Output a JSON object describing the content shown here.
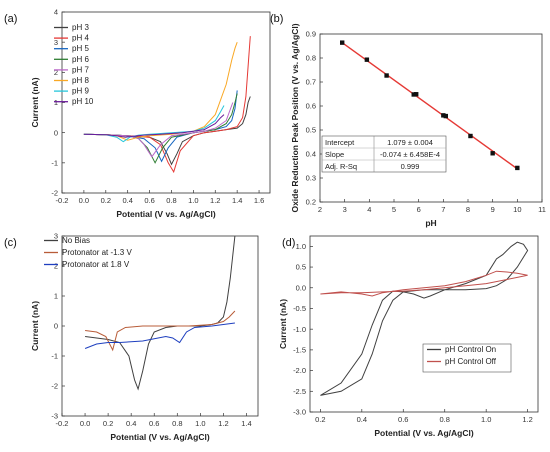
{
  "chart_data": [
    {
      "panel": "(a)",
      "type": "line",
      "xlabel": "Potential (V vs. Ag/AgCl)",
      "ylabel": "Current (nA)",
      "xlim": [
        -0.2,
        1.7
      ],
      "ylim": [
        -2,
        4
      ],
      "xticks": [
        "-0.2",
        "0.0",
        "0.2",
        "0.4",
        "0.6",
        "0.8",
        "1.0",
        "1.2",
        "1.4",
        "1.6"
      ],
      "yticks": [
        "-2",
        "-1",
        "0",
        "1",
        "2",
        "3",
        "4"
      ],
      "legend_position": "top-left",
      "series": [
        {
          "name": "pH 3",
          "color": "#404040",
          "x": [
            0,
            0.2,
            0.4,
            0.6,
            0.7,
            0.76,
            0.8,
            0.85,
            0.9,
            1.0,
            1.1,
            1.2,
            1.3,
            1.4,
            1.45,
            1.48,
            1.5,
            1.52
          ],
          "y": [
            -0.05,
            -0.07,
            -0.1,
            -0.15,
            -0.3,
            -0.7,
            -1.05,
            -0.7,
            -0.3,
            -0.1,
            0,
            0.05,
            0.1,
            0.15,
            0.3,
            0.6,
            1.0,
            1.2
          ]
        },
        {
          "name": "pH 4",
          "color": "#e53935",
          "x": [
            0,
            0.2,
            0.4,
            0.6,
            0.7,
            0.77,
            0.82,
            0.88,
            1.0,
            1.1,
            1.2,
            1.3,
            1.4,
            1.45,
            1.48,
            1.5,
            1.52
          ],
          "y": [
            -0.05,
            -0.07,
            -0.1,
            -0.15,
            -0.4,
            -1.0,
            -1.3,
            -0.6,
            -0.1,
            0,
            0.05,
            0.1,
            0.2,
            0.5,
            1.2,
            2.2,
            3.2
          ]
        },
        {
          "name": "pH 5",
          "color": "#1565c0",
          "x": [
            0,
            0.2,
            0.4,
            0.55,
            0.65,
            0.71,
            0.77,
            0.85,
            1.0,
            1.1,
            1.2,
            1.3,
            1.35,
            1.38,
            1.4
          ],
          "y": [
            -0.05,
            -0.07,
            -0.1,
            -0.2,
            -0.5,
            -0.95,
            -0.5,
            -0.15,
            0,
            0.05,
            0.1,
            0.2,
            0.4,
            0.8,
            1.4
          ]
        },
        {
          "name": "pH 6",
          "color": "#2e7d32",
          "x": [
            0,
            0.2,
            0.4,
            0.5,
            0.58,
            0.65,
            0.72,
            0.8,
            1.0,
            1.1,
            1.2,
            1.3,
            1.35,
            1.38,
            1.4
          ],
          "y": [
            -0.05,
            -0.07,
            -0.1,
            -0.2,
            -0.5,
            -1.0,
            -0.5,
            -0.15,
            0,
            0.05,
            0.1,
            0.3,
            0.6,
            1.0,
            1.3
          ]
        },
        {
          "name": "pH 7",
          "color": "#ba68c8",
          "x": [
            0,
            0.2,
            0.4,
            0.5,
            0.55,
            0.62,
            0.7,
            0.8,
            1.0,
            1.1,
            1.2,
            1.3,
            1.33,
            1.36
          ],
          "y": [
            -0.05,
            -0.07,
            -0.1,
            -0.2,
            -0.4,
            -0.8,
            -0.4,
            -0.1,
            0,
            0.05,
            0.15,
            0.4,
            0.7,
            1.0
          ]
        },
        {
          "name": "pH 8",
          "color": "#f9a825",
          "x": [
            0,
            0.2,
            0.3,
            0.4,
            0.5,
            0.6,
            0.8,
            1.0,
            1.1,
            1.2,
            1.3,
            1.35,
            1.38,
            1.4
          ],
          "y": [
            -0.05,
            -0.07,
            -0.1,
            -0.25,
            -0.15,
            -0.1,
            -0.05,
            0.05,
            0.2,
            0.6,
            1.6,
            2.4,
            2.8,
            3.0
          ]
        },
        {
          "name": "pH 9",
          "color": "#26c6da",
          "x": [
            0,
            0.2,
            0.3,
            0.36,
            0.42,
            0.5,
            0.6,
            0.8,
            1.0,
            1.1,
            1.2,
            1.25,
            1.28
          ],
          "y": [
            -0.05,
            -0.07,
            -0.15,
            -0.3,
            -0.15,
            -0.08,
            -0.05,
            0,
            0.05,
            0.15,
            0.4,
            0.7,
            0.9
          ]
        },
        {
          "name": "pH 10",
          "color": "#6a1b9a",
          "x": [
            0,
            0.2,
            0.3,
            0.38,
            0.45,
            0.55,
            0.7,
            0.9,
            1.0,
            1.1,
            1.2,
            1.25,
            1.28
          ],
          "y": [
            -0.05,
            -0.07,
            -0.1,
            -0.15,
            -0.12,
            -0.08,
            -0.05,
            0,
            0.05,
            0.1,
            0.3,
            0.5,
            0.6
          ]
        }
      ]
    },
    {
      "panel": "(b)",
      "type": "scatter",
      "xlabel": "pH",
      "ylabel": "Oxide Reduction Peak Position (V vs. Ag/AgCl)",
      "xlim": [
        2,
        11
      ],
      "ylim": [
        0.2,
        0.9
      ],
      "xticks": [
        "2",
        "3",
        "4",
        "5",
        "6",
        "7",
        "8",
        "9",
        "10",
        "11"
      ],
      "yticks": [
        "0.2",
        "0.3",
        "0.4",
        "0.5",
        "0.6",
        "0.7",
        "0.8",
        "0.9"
      ],
      "points": {
        "x": [
          2.9,
          3.9,
          4.7,
          5.8,
          5.9,
          7.0,
          7.1,
          8.1,
          9.0,
          10.0
        ],
        "y": [
          0.864,
          0.793,
          0.727,
          0.648,
          0.649,
          0.561,
          0.558,
          0.475,
          0.403,
          0.342
        ]
      },
      "fit": {
        "x": [
          2.9,
          10.0
        ],
        "y": [
          0.864,
          0.338
        ],
        "color": "#e53935"
      },
      "fit_table": [
        [
          "Intercept",
          "1.079 ± 0.004"
        ],
        [
          "Slope",
          "-0.074 ± 6.458E-4"
        ],
        [
          "Adj. R-Sq",
          "0.999"
        ]
      ]
    },
    {
      "panel": "(c)",
      "type": "line",
      "xlabel": "Potential (V vs. Ag/AgCl)",
      "ylabel": "Current (nA)",
      "xlim": [
        -0.2,
        1.5
      ],
      "ylim": [
        -3,
        3
      ],
      "xticks": [
        "-0.2",
        "0.0",
        "0.2",
        "0.4",
        "0.6",
        "0.8",
        "1.0",
        "1.2",
        "1.4"
      ],
      "yticks": [
        "-3",
        "-2",
        "-1",
        "0",
        "1",
        "2",
        "3"
      ],
      "legend_position": "top-left",
      "series": [
        {
          "name": "No Bias",
          "color": "#404040",
          "x": [
            0,
            0.1,
            0.2,
            0.3,
            0.38,
            0.43,
            0.46,
            0.5,
            0.55,
            0.6,
            0.7,
            0.8,
            0.9,
            1.0,
            1.1,
            1.15,
            1.2,
            1.23,
            1.26,
            1.28,
            1.3
          ],
          "y": [
            -0.35,
            -0.4,
            -0.45,
            -0.55,
            -1.0,
            -1.8,
            -2.1,
            -1.5,
            -0.6,
            -0.2,
            -0.05,
            0,
            0,
            0,
            0.05,
            0.1,
            0.3,
            0.8,
            1.6,
            2.3,
            3.0
          ]
        },
        {
          "name": "Protonator at -1.3 V",
          "color": "#b85c38",
          "x": [
            0,
            0.1,
            0.18,
            0.24,
            0.28,
            0.35,
            0.5,
            0.7,
            0.9,
            1.1,
            1.2,
            1.25,
            1.3
          ],
          "y": [
            -0.15,
            -0.2,
            -0.35,
            -0.8,
            -0.2,
            -0.05,
            0,
            0,
            0,
            0.05,
            0.15,
            0.3,
            0.5
          ]
        },
        {
          "name": "Protonator at 1.8 V",
          "color": "#1e3fbf",
          "x": [
            0,
            0.1,
            0.2,
            0.3,
            0.5,
            0.7,
            0.76,
            0.82,
            0.88,
            0.95,
            1.1,
            1.2,
            1.3
          ],
          "y": [
            -0.75,
            -0.6,
            -0.55,
            -0.55,
            -0.5,
            -0.35,
            -0.4,
            -0.55,
            -0.2,
            -0.05,
            0,
            0.05,
            0.1
          ]
        }
      ]
    },
    {
      "panel": "(d)",
      "type": "line",
      "xlabel": "Potential (V vs. Ag/AgCl)",
      "ylabel": "Current (nA)",
      "xlim": [
        0.15,
        1.25
      ],
      "ylim": [
        -3.0,
        1.25
      ],
      "xticks": [
        "0.2",
        "0.4",
        "0.6",
        "0.8",
        "1.0",
        "1.2"
      ],
      "yticks": [
        "-3.0",
        "-2.5",
        "-2.0",
        "-1.5",
        "-1.0",
        "-0.5",
        "0.0",
        "0.5",
        "1.0"
      ],
      "legend_position": "bottom-right",
      "series": [
        {
          "name": "pH Control On",
          "color": "#404040",
          "x": [
            0.2,
            0.3,
            0.4,
            0.45,
            0.5,
            0.55,
            0.6,
            0.65,
            0.7,
            0.73,
            0.8,
            0.9,
            1.0,
            1.05,
            1.08,
            1.12,
            1.15,
            1.18,
            1.2,
            1.15,
            1.1,
            1.05,
            1.0,
            0.9,
            0.8,
            0.7,
            0.6,
            0.55,
            0.5,
            0.45,
            0.4,
            0.3,
            0.2
          ],
          "y": [
            -2.6,
            -2.3,
            -1.6,
            -0.9,
            -0.3,
            -0.08,
            -0.1,
            -0.15,
            -0.25,
            -0.2,
            -0.05,
            0.1,
            0.3,
            0.7,
            0.8,
            1.0,
            1.1,
            1.05,
            0.9,
            0.5,
            0.2,
            0.05,
            -0.02,
            -0.05,
            -0.05,
            -0.05,
            -0.1,
            -0.3,
            -0.8,
            -1.6,
            -2.2,
            -2.5,
            -2.6
          ]
        },
        {
          "name": "pH Control Off",
          "color": "#c0504d",
          "x": [
            0.2,
            0.3,
            0.4,
            0.45,
            0.5,
            0.6,
            0.7,
            0.8,
            0.9,
            1.0,
            1.05,
            1.1,
            1.15,
            1.2,
            1.15,
            1.1,
            1.0,
            0.9,
            0.8,
            0.7,
            0.6,
            0.5,
            0.4,
            0.3,
            0.2
          ],
          "y": [
            -0.15,
            -0.1,
            -0.15,
            -0.2,
            -0.12,
            -0.05,
            0,
            0.05,
            0.15,
            0.3,
            0.4,
            0.38,
            0.35,
            0.3,
            0.25,
            0.2,
            0.1,
            0.05,
            0,
            -0.05,
            -0.08,
            -0.1,
            -0.12,
            -0.12,
            -0.15
          ]
        }
      ]
    }
  ]
}
